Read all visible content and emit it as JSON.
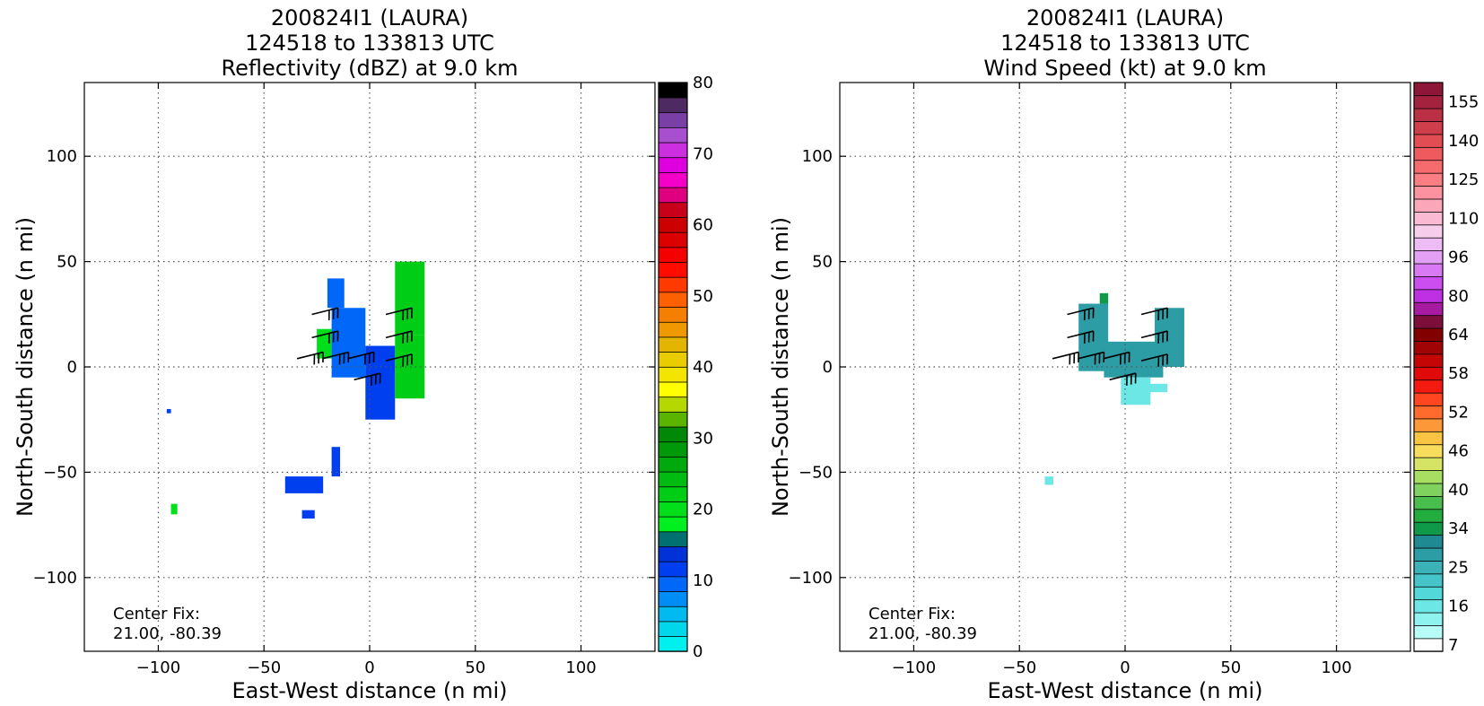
{
  "panels": [
    {
      "title_lines": [
        "200824I1 (LAURA)",
        "124518 to 133813 UTC",
        "Reflectivity (dBZ) at 9.0 km"
      ],
      "xlabel": "East-West distance (n mi)",
      "ylabel": "North-South distance (n mi)",
      "center_fix_label": "Center Fix:",
      "center_fix_value": "21.00, -80.39",
      "colorbar_labels": [
        {
          "value": 0,
          "text": "0"
        },
        {
          "value": 10,
          "text": "10"
        },
        {
          "value": 20,
          "text": "20"
        },
        {
          "value": 30,
          "text": "30"
        },
        {
          "value": 40,
          "text": "40"
        },
        {
          "value": 50,
          "text": "50"
        },
        {
          "value": 60,
          "text": "60"
        },
        {
          "value": 70,
          "text": "70"
        },
        {
          "value": 80,
          "text": "80"
        }
      ],
      "colorbar_colors": [
        "#00f0f0",
        "#00d7ea",
        "#00baf0",
        "#008ef6",
        "#0067f9",
        "#003ff0",
        "#0032d7",
        "#007070",
        "#00ef1e",
        "#00df1a",
        "#00cd16",
        "#00bc12",
        "#00aa0e",
        "#00990a",
        "#008806",
        "#5bb400",
        "#b4d800",
        "#ffff00",
        "#f3e500",
        "#e9cd00",
        "#e4b500",
        "#f09800",
        "#f57f00",
        "#fd6000",
        "#ff3a00",
        "#ff0b00",
        "#f50000",
        "#dd0000",
        "#cd0000",
        "#c80019",
        "#df0080",
        "#f500c8",
        "#df00df",
        "#cb2fdf",
        "#a84fcf",
        "#7a3fa6",
        "#4e2a63",
        "#000000"
      ]
    },
    {
      "title_lines": [
        "200824I1 (LAURA)",
        "124518 to 133813 UTC",
        "Wind Speed (kt) at 9.0 km"
      ],
      "xlabel": "East-West distance (n mi)",
      "ylabel": "North-South distance (n mi)",
      "center_fix_label": "Center Fix:",
      "center_fix_value": "21.00, -80.39",
      "colorbar_labels": [
        {
          "index": 0,
          "text": "7"
        },
        {
          "index": 3,
          "text": "16"
        },
        {
          "index": 6,
          "text": "25"
        },
        {
          "index": 9,
          "text": "34"
        },
        {
          "index": 12,
          "text": "40"
        },
        {
          "index": 15,
          "text": "46"
        },
        {
          "index": 18,
          "text": "52"
        },
        {
          "index": 21,
          "text": "58"
        },
        {
          "index": 24,
          "text": "64"
        },
        {
          "index": 27,
          "text": "80"
        },
        {
          "index": 30,
          "text": "96"
        },
        {
          "index": 33,
          "text": "110"
        },
        {
          "index": 36,
          "text": "125"
        },
        {
          "index": 39,
          "text": "140"
        },
        {
          "index": 42,
          "text": "155"
        }
      ],
      "colorbar_colors": [
        "#ffffff",
        "#b8fcf8",
        "#8ef3ef",
        "#6ce7e6",
        "#52d8d9",
        "#45c5ca",
        "#3bb1b8",
        "#2c9ca5",
        "#1f8a92",
        "#0f9a4a",
        "#22ad3e",
        "#49be4c",
        "#80d25f",
        "#a8df63",
        "#d6e466",
        "#f7dd5b",
        "#fbc442",
        "#fd9838",
        "#ff6b2c",
        "#ff4620",
        "#f51a10",
        "#e00a0a",
        "#c50606",
        "#a00404",
        "#820000",
        "#7c0e3a",
        "#a81a9f",
        "#bf2fe4",
        "#cc4ef1",
        "#d87af3",
        "#e39ff3",
        "#edbcf4",
        "#f6cdeb",
        "#f9bad2",
        "#fba6b9",
        "#fc92a0",
        "#fa7e84",
        "#f66b6e",
        "#ee5a5d",
        "#e24c53",
        "#d03e4c",
        "#bb3045",
        "#a5223f",
        "#8e1638"
      ]
    }
  ],
  "chart_data": [
    {
      "type": "heatmap",
      "title": "200824I1 (LAURA) 124518 to 133813 UTC Reflectivity (dBZ) at 9.0 km",
      "xlabel": "East-West distance (n mi)",
      "ylabel": "North-South distance (n mi)",
      "xlim": [
        -135,
        135
      ],
      "ylim": [
        -135,
        135
      ],
      "xticks": [
        -100,
        -50,
        0,
        50,
        100
      ],
      "yticks": [
        -100,
        -50,
        0,
        50,
        100
      ],
      "grid": true,
      "colorbar_range": [
        0,
        80
      ],
      "echo_regions": [
        {
          "x": [
            -20,
            -12
          ],
          "y": [
            28,
            42
          ],
          "dbz": 10
        },
        {
          "x": [
            -25,
            -18
          ],
          "y": [
            4,
            18
          ],
          "dbz": 20
        },
        {
          "x": [
            -18,
            -2
          ],
          "y": [
            -5,
            28
          ],
          "dbz": 10
        },
        {
          "x": [
            -2,
            12
          ],
          "y": [
            -25,
            10
          ],
          "dbz": 12
        },
        {
          "x": [
            12,
            26
          ],
          "y": [
            -15,
            15
          ],
          "dbz": 22
        },
        {
          "x": [
            12,
            26
          ],
          "y": [
            15,
            50
          ],
          "dbz": 22
        },
        {
          "x": [
            -40,
            -22
          ],
          "y": [
            -60,
            -52
          ],
          "dbz": 12
        },
        {
          "x": [
            -18,
            -14
          ],
          "y": [
            -52,
            -38
          ],
          "dbz": 12
        },
        {
          "x": [
            -32,
            -26
          ],
          "y": [
            -72,
            -68
          ],
          "dbz": 12
        },
        {
          "x": [
            -94,
            -91
          ],
          "y": [
            -70,
            -65
          ],
          "dbz": 20
        },
        {
          "x": [
            -96,
            -94
          ],
          "y": [
            -22,
            -20
          ],
          "dbz": 12
        }
      ],
      "wind_barbs": [
        {
          "x": -15,
          "y": 28
        },
        {
          "x": -15,
          "y": 17
        },
        {
          "x": -22,
          "y": 7
        },
        {
          "x": -10,
          "y": 7
        },
        {
          "x": 2,
          "y": 7
        },
        {
          "x": 20,
          "y": 28
        },
        {
          "x": 20,
          "y": 17
        },
        {
          "x": 20,
          "y": 6
        },
        {
          "x": 5,
          "y": -3
        }
      ]
    },
    {
      "type": "heatmap",
      "title": "200824I1 (LAURA) 124518 to 133813 UTC Wind Speed (kt) at 9.0 km",
      "xlabel": "East-West distance (n mi)",
      "ylabel": "North-South distance (n mi)",
      "xlim": [
        -135,
        135
      ],
      "ylim": [
        -135,
        135
      ],
      "xticks": [
        -100,
        -50,
        0,
        50,
        100
      ],
      "yticks": [
        -100,
        -50,
        0,
        50,
        100
      ],
      "grid": true,
      "colorbar_ticks": [
        7,
        16,
        25,
        34,
        40,
        46,
        52,
        58,
        64,
        80,
        96,
        110,
        125,
        140,
        155
      ],
      "wind_regions": [
        {
          "x": [
            -22,
            -8
          ],
          "y": [
            -2,
            30
          ],
          "kt": 28
        },
        {
          "x": [
            -10,
            18
          ],
          "y": [
            -5,
            12
          ],
          "kt": 28
        },
        {
          "x": [
            14,
            28
          ],
          "y": [
            0,
            28
          ],
          "kt": 28
        },
        {
          "x": [
            -2,
            12
          ],
          "y": [
            -18,
            -5
          ],
          "kt": 16
        },
        {
          "x": [
            10,
            20
          ],
          "y": [
            -12,
            -8
          ],
          "kt": 16
        },
        {
          "x": [
            -38,
            -34
          ],
          "y": [
            -56,
            -52
          ],
          "kt": 16
        },
        {
          "x": [
            -12,
            -8
          ],
          "y": [
            30,
            35
          ],
          "kt": 34
        }
      ],
      "wind_barbs": [
        {
          "x": -15,
          "y": 28
        },
        {
          "x": -15,
          "y": 17
        },
        {
          "x": -22,
          "y": 7
        },
        {
          "x": -10,
          "y": 7
        },
        {
          "x": 2,
          "y": 7
        },
        {
          "x": 20,
          "y": 28
        },
        {
          "x": 20,
          "y": 17
        },
        {
          "x": 20,
          "y": 6
        },
        {
          "x": 5,
          "y": -3
        }
      ]
    }
  ]
}
